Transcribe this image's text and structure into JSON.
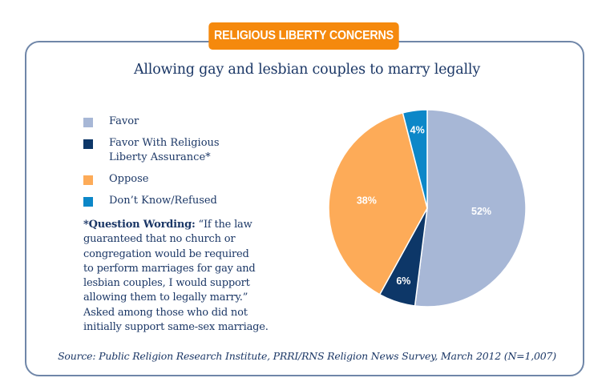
{
  "banner": "RELIGIOUS LIBERTY CONCERNS",
  "chart_data": {
    "type": "pie",
    "title": "Allowing gay and lesbian couples to marry legally",
    "slices": [
      {
        "label": "Favor",
        "value": 52,
        "display": "52%",
        "color": "#a7b7d6"
      },
      {
        "label": "Favor With Religious Liberty Assurance*",
        "value": 6,
        "display": "6%",
        "color": "#0d3768"
      },
      {
        "label": "Oppose",
        "value": 38,
        "display": "38%",
        "color": "#fdab58"
      },
      {
        "label": "Don’t Know/Refused",
        "value": 4,
        "display": "4%",
        "color": "#0c87c8"
      }
    ],
    "legend_position": "left",
    "legend": [
      {
        "line1": "Favor",
        "line2": "",
        "color": "#a7b7d6"
      },
      {
        "line1": "Favor With Religious",
        "line2": "Liberty Assurance*",
        "color": "#0d3768"
      },
      {
        "line1": "Oppose",
        "line2": "",
        "color": "#fdab58"
      },
      {
        "line1": "Don’t Know/Refused",
        "line2": "",
        "color": "#0c87c8"
      }
    ]
  },
  "note": {
    "label": "*Question Wording:",
    "lines": [
      "“If the law",
      "guaranteed that no church or",
      "congregation would be required",
      "to perform marriages for gay and",
      "lesbian couples, I would support",
      "allowing them to legally marry.”",
      "Asked among those who did not",
      "initially support same-sex marriage."
    ]
  },
  "source": "Source: Public Religion Research Institute, PRRI/RNS Religion News Survey, March 2012 (N=1,007)"
}
